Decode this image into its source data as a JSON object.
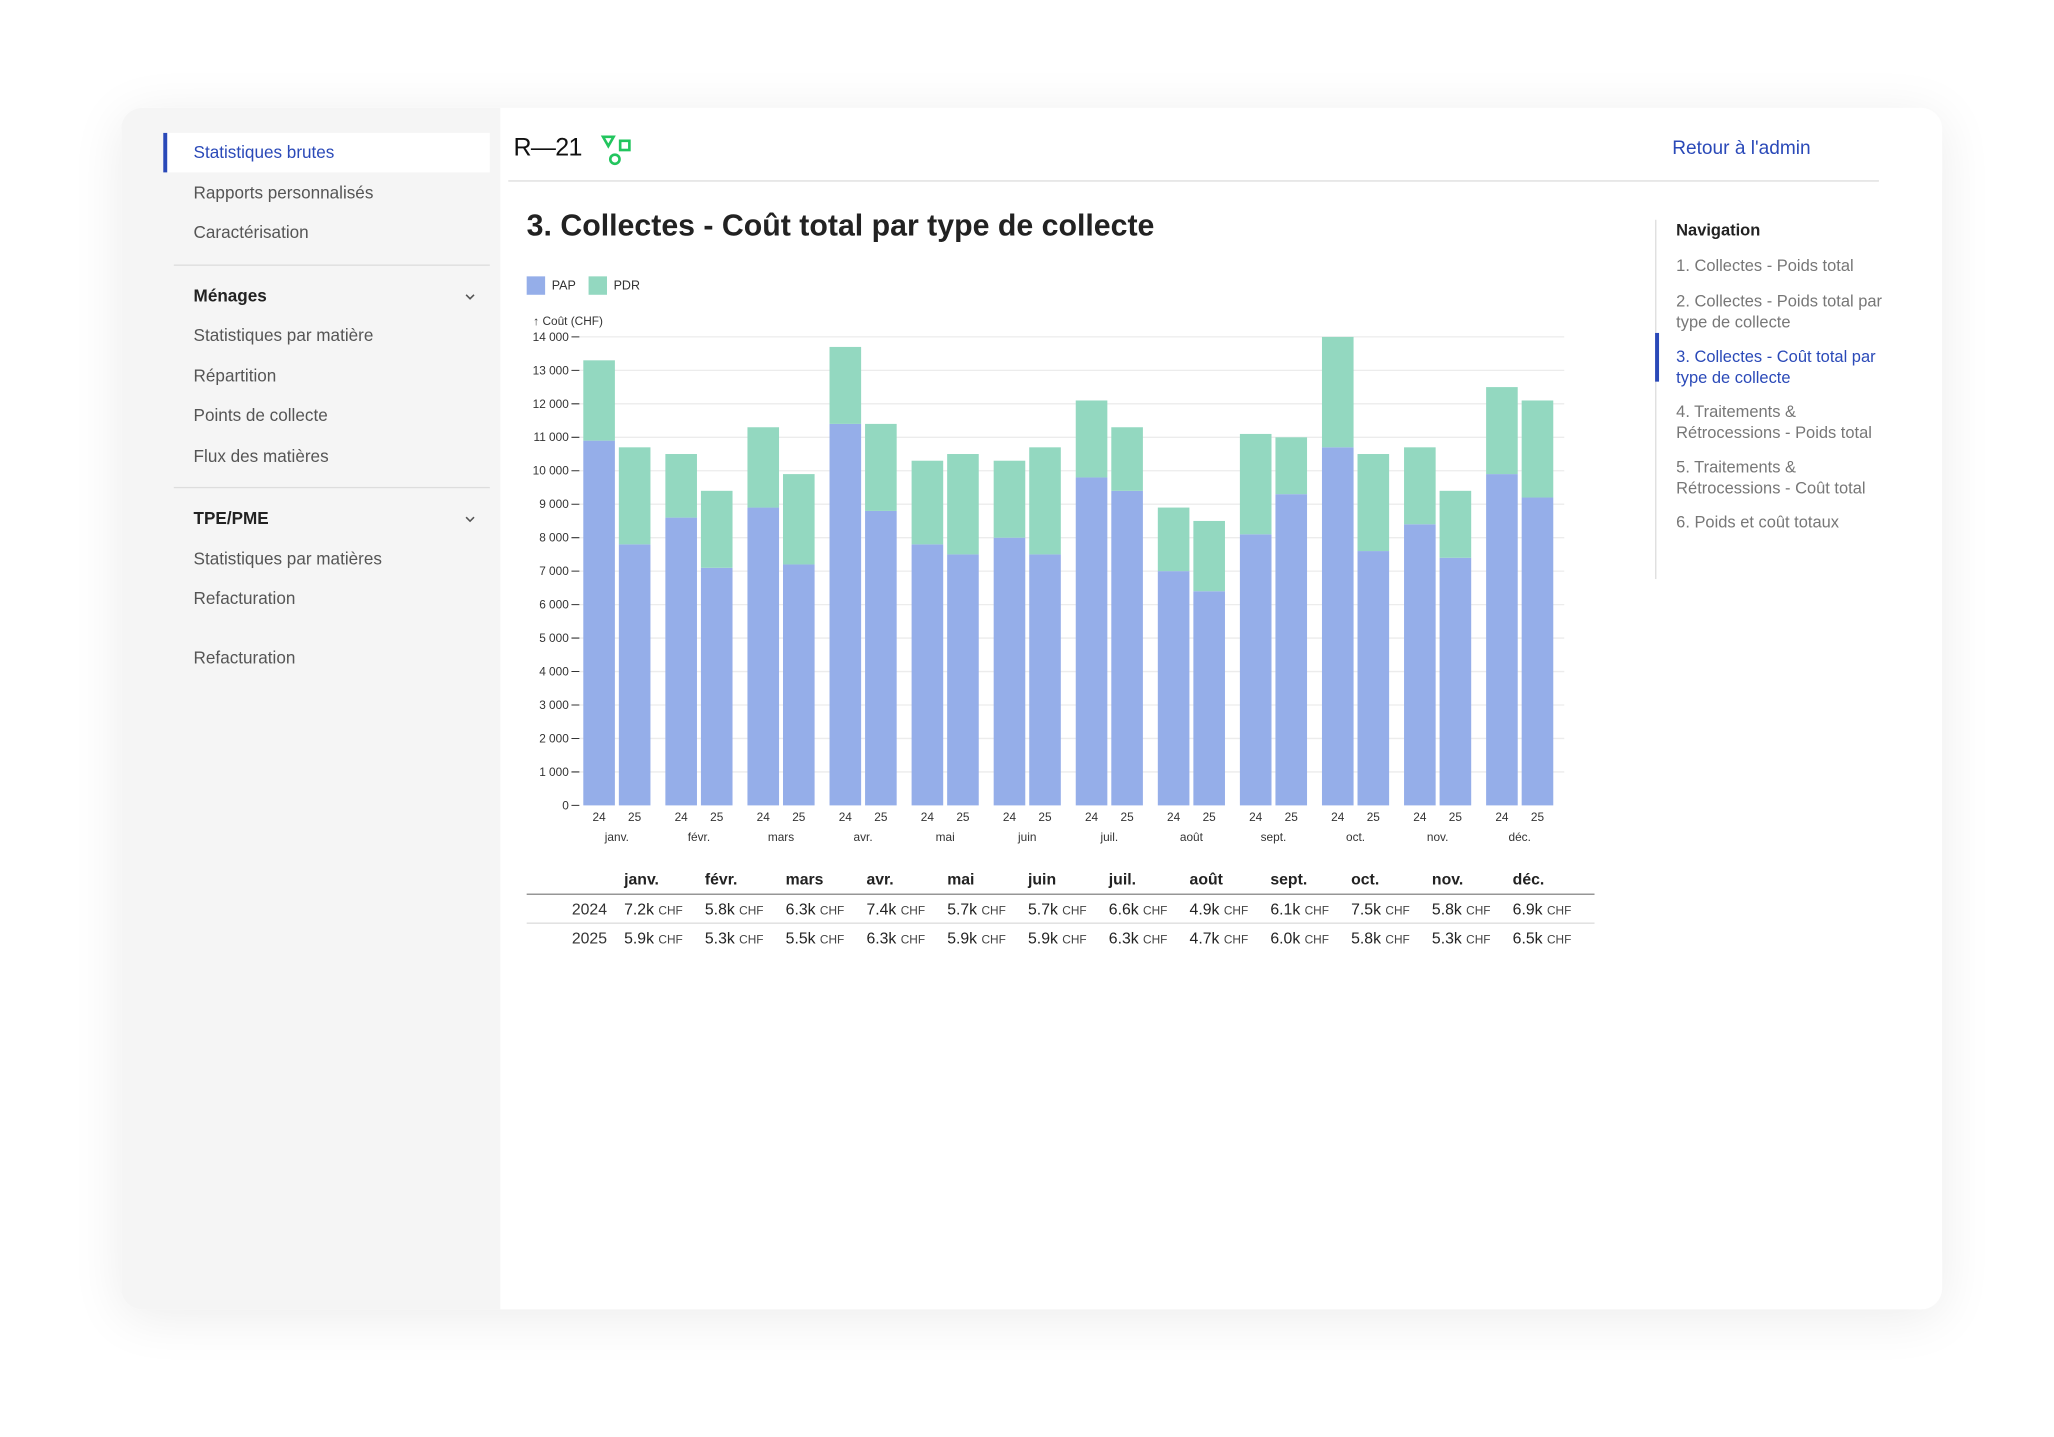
{
  "sidebar": {
    "items": [
      "Statistiques brutes",
      "Rapports personnalisés",
      "Caractérisation"
    ],
    "sections": [
      {
        "title": "Ménages",
        "items": [
          "Statistiques par matière",
          "Répartition",
          "Points de collecte",
          "Flux des matières"
        ]
      },
      {
        "title": "TPE/PME",
        "items": [
          "Statistiques par matières",
          "Refacturation"
        ]
      }
    ],
    "footer": "Refacturation"
  },
  "header": {
    "logo": "R—21",
    "link": "Retour à l'admin"
  },
  "chart_data": {
    "type": "stacked_bar",
    "title": "3. Collectes - Coût total par type de collecte",
    "y_label": "↑ Coût (CHF)",
    "groups": [
      "janv.",
      "févr.",
      "mars",
      "avr.",
      "mai",
      "juin",
      "juil.",
      "août",
      "sept.",
      "oct.",
      "nov.",
      "déc."
    ],
    "categories": [
      "24",
      "25",
      "24",
      "25",
      "24",
      "25",
      "24",
      "25",
      "24",
      "25",
      "24",
      "25",
      "24",
      "25",
      "24",
      "25",
      "24",
      "25",
      "24",
      "25",
      "24",
      "25",
      "24",
      "25"
    ],
    "series": [
      {
        "name": "PAP",
        "color": "#95aee9",
        "values": [
          10900,
          7800,
          8600,
          7100,
          8900,
          7200,
          11400,
          8800,
          7800,
          7500,
          8000,
          7500,
          9800,
          9400,
          7000,
          6400,
          8100,
          9300,
          10700,
          7600,
          8400,
          7400,
          9900,
          9200
        ]
      },
      {
        "name": "PDR",
        "color": "#93d8c0",
        "values": [
          2400,
          2900,
          1900,
          2300,
          2400,
          2700,
          2300,
          2600,
          2500,
          3000,
          2300,
          3200,
          2300,
          1900,
          1900,
          2100,
          3000,
          1700,
          3300,
          2900,
          2300,
          2000,
          2600,
          2900
        ]
      }
    ],
    "ylim": [
      0,
      14000
    ],
    "yticks": [
      0,
      {
        "value": 1000,
        "label": "1 000"
      },
      {
        "value": 2000,
        "label": "2 000"
      },
      {
        "value": 3000,
        "label": "3 000"
      },
      {
        "value": 4000,
        "label": "4 000"
      },
      {
        "value": 5000,
        "label": "5 000"
      },
      {
        "value": 6000,
        "label": "6 000"
      },
      {
        "value": 7000,
        "label": "7 000"
      },
      {
        "value": 8000,
        "label": "8 000"
      },
      {
        "value": 9000,
        "label": "9 000"
      },
      {
        "value": 10000,
        "label": "10 000"
      },
      {
        "value": 11000,
        "label": "11 000"
      },
      {
        "value": 12000,
        "label": "12 000"
      },
      {
        "value": 13000,
        "label": "13 000"
      },
      {
        "value": 14000,
        "label": "14 000"
      }
    ],
    "grid": true
  },
  "table": {
    "columns": [
      "janv.",
      "févr.",
      "mars",
      "avr.",
      "mai",
      "juin",
      "juil.",
      "août",
      "sept.",
      "oct.",
      "nov.",
      "déc."
    ],
    "rows": [
      {
        "year": "2024",
        "cells": [
          {
            "value": "7.2k",
            "unit": "CHF"
          },
          {
            "value": "5.8k",
            "unit": "CHF"
          },
          {
            "value": "6.3k",
            "unit": "CHF"
          },
          {
            "value": "7.4k",
            "unit": "CHF"
          },
          {
            "value": "5.7k",
            "unit": "CHF"
          },
          {
            "value": "5.7k",
            "unit": "CHF"
          },
          {
            "value": "6.6k",
            "unit": "CHF"
          },
          {
            "value": "4.9k",
            "unit": "CHF"
          },
          {
            "value": "6.1k",
            "unit": "CHF"
          },
          {
            "value": "7.5k",
            "unit": "CHF"
          },
          {
            "value": "5.8k",
            "unit": "CHF"
          },
          {
            "value": "6.9k",
            "unit": "CHF"
          }
        ]
      },
      {
        "year": "2025",
        "cells": [
          {
            "value": "5.9k",
            "unit": "CHF"
          },
          {
            "value": "5.3k",
            "unit": "CHF"
          },
          {
            "value": "5.5k",
            "unit": "CHF"
          },
          {
            "value": "6.3k",
            "unit": "CHF"
          },
          {
            "value": "5.9k",
            "unit": "CHF"
          },
          {
            "value": "5.9k",
            "unit": "CHF"
          },
          {
            "value": "6.3k",
            "unit": "CHF"
          },
          {
            "value": "4.7k",
            "unit": "CHF"
          },
          {
            "value": "6.0k",
            "unit": "CHF"
          },
          {
            "value": "5.8k",
            "unit": "CHF"
          },
          {
            "value": "5.3k",
            "unit": "CHF"
          },
          {
            "value": "6.5k",
            "unit": "CHF"
          }
        ]
      }
    ]
  },
  "nav": {
    "title": "Navigation",
    "active": 2,
    "items": [
      "1. Collectes - Poids total",
      "2. Collectes - Poids total par type de collecte",
      "3. Collectes - Coût total par type de collecte",
      "4. Traitements & Rétrocessions - Poids total",
      "5. Traitements & Rétrocessions - Coût total",
      "6. Poids et coût totaux"
    ]
  }
}
